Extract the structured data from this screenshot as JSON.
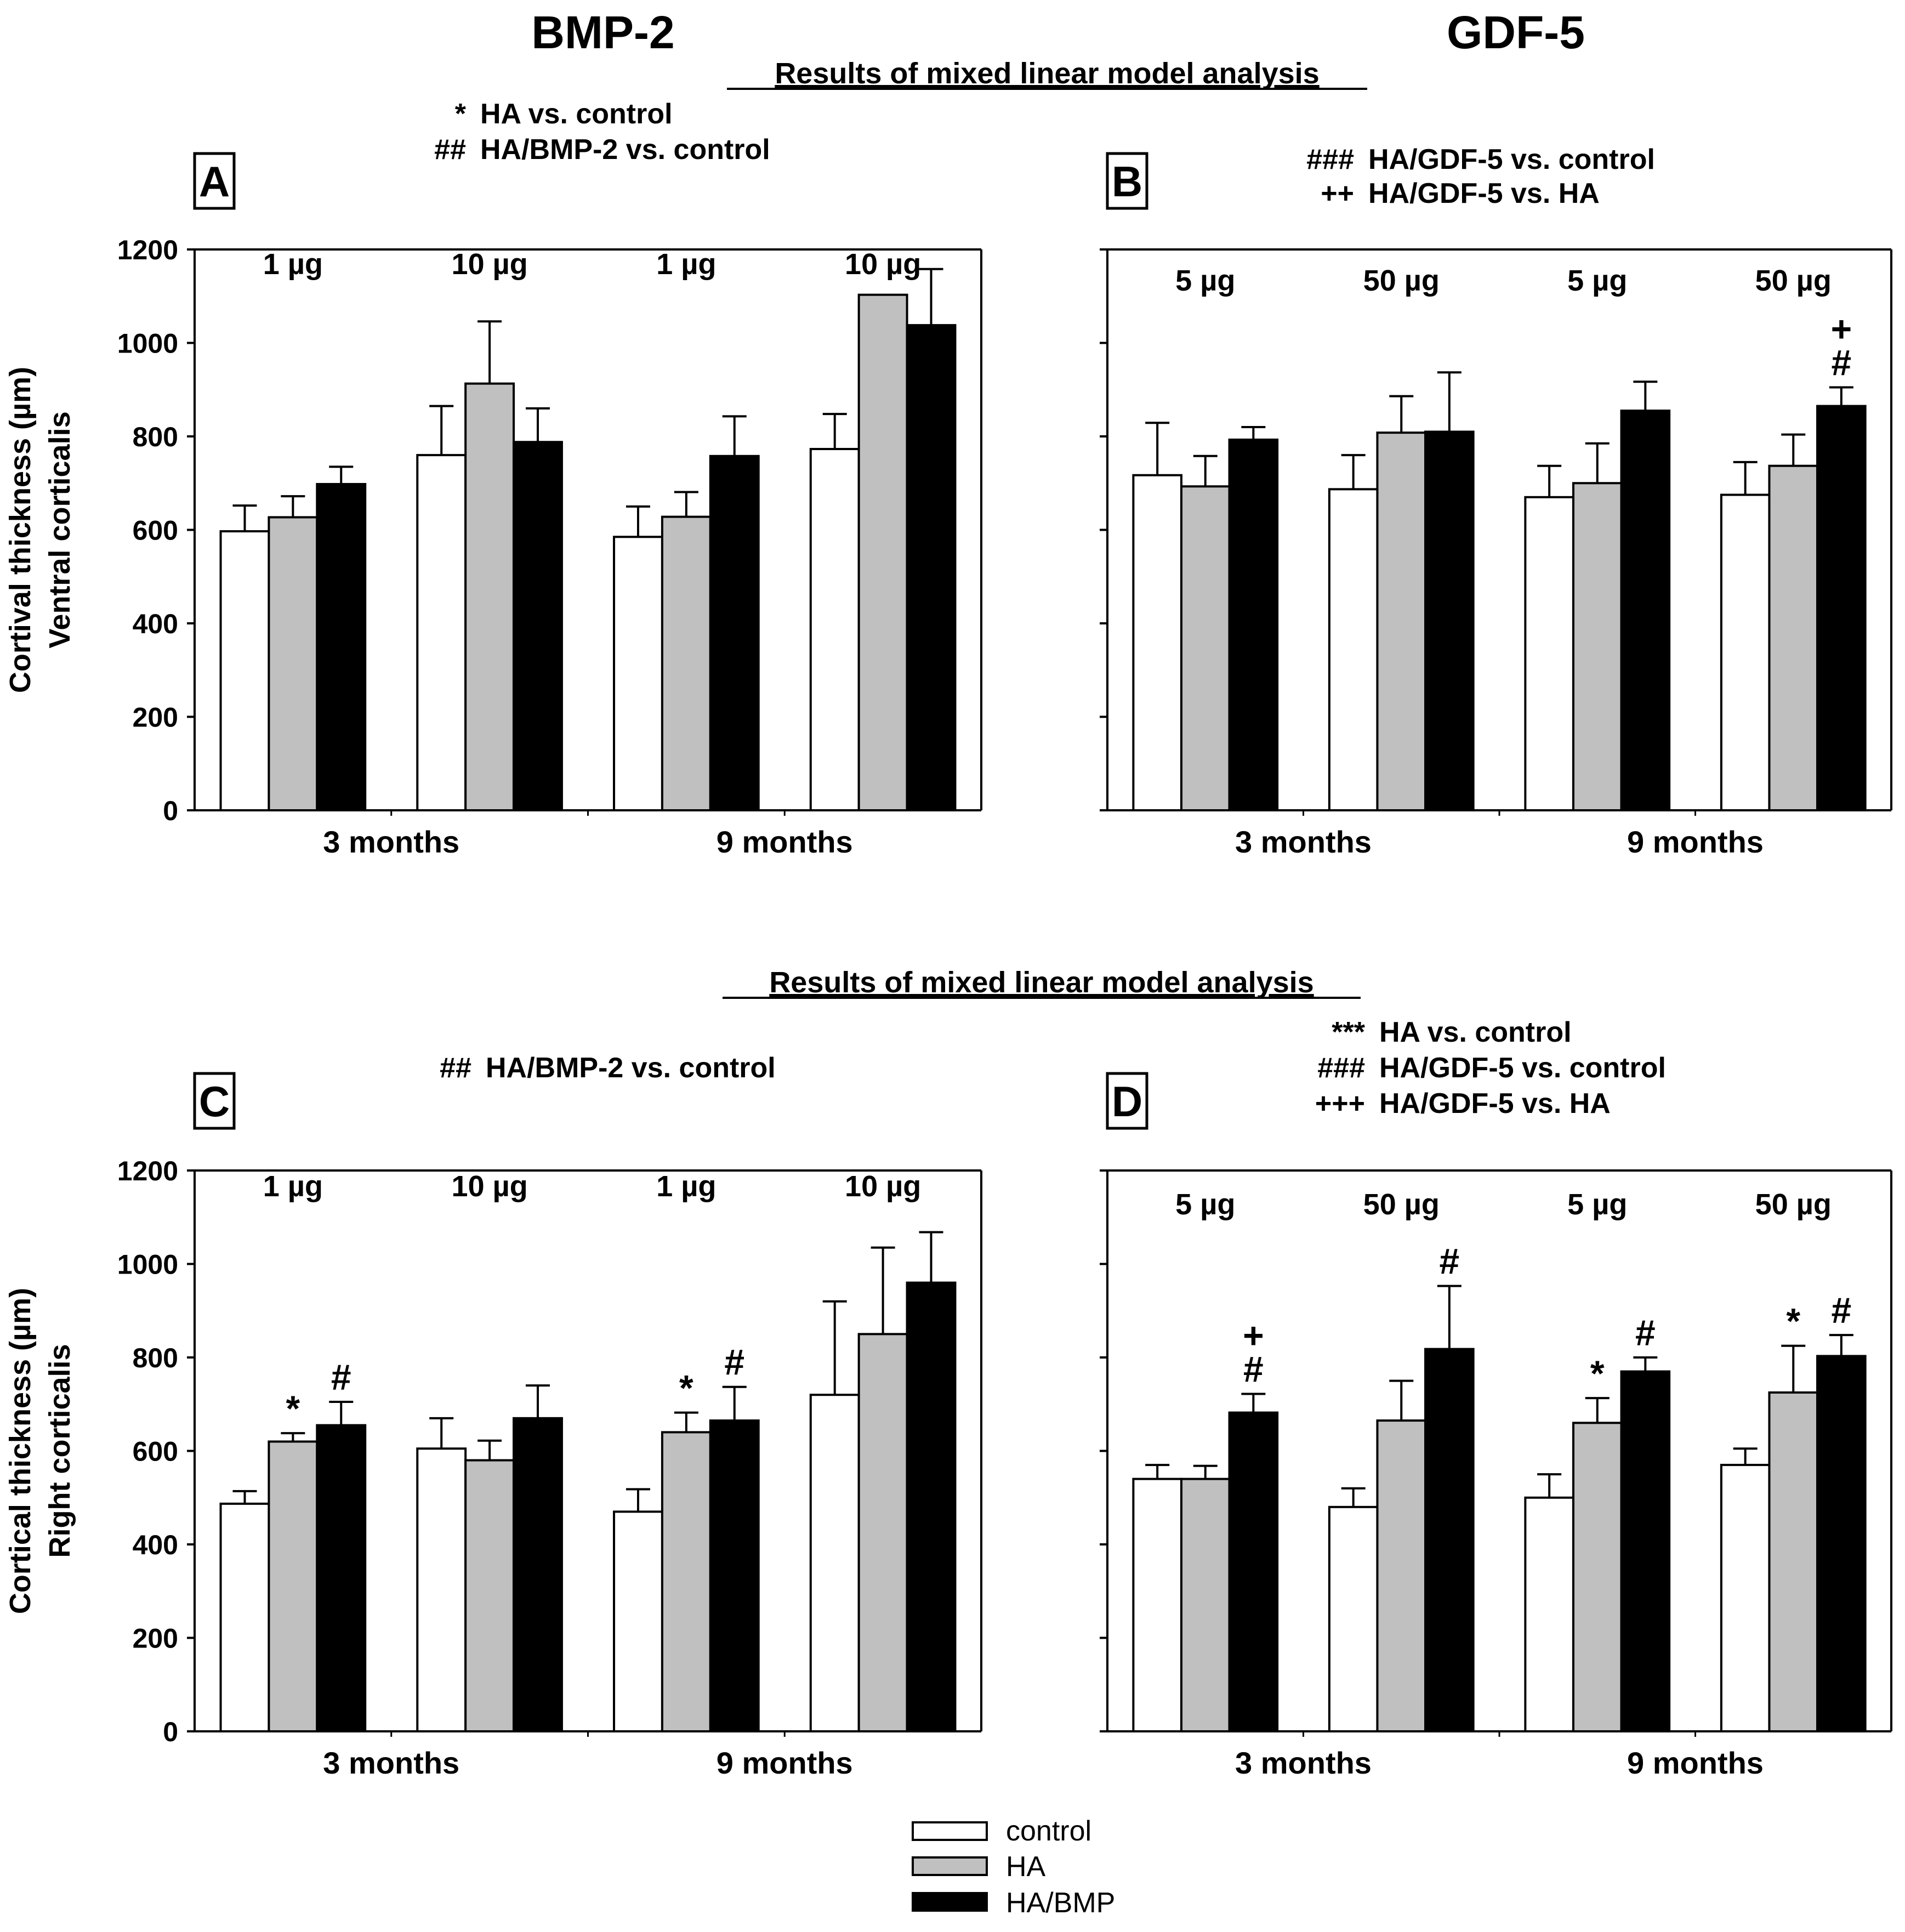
{
  "header": {
    "bmp_title": "BMP-2",
    "gdf_title": "GDF-5",
    "analysis_title_top": "Results of mixed linear model analysis",
    "analysis_title_bottom": "Results of mixed linear model analysis"
  },
  "legend": {
    "items": [
      {
        "label": "control",
        "color": "#ffffff"
      },
      {
        "label": "HA",
        "color": "#c0c0c0"
      },
      {
        "label": "HA/BMP",
        "color": "#000000"
      }
    ]
  },
  "chart_data": [
    {
      "panel": "A",
      "type": "bar",
      "ylabel_lines": [
        "Cortival thickness (µm)",
        "Ventral corticalis"
      ],
      "ylim": [
        0,
        1200
      ],
      "yticks": [
        0,
        200,
        400,
        600,
        800,
        1000,
        1200
      ],
      "show_tick_labels": true,
      "time_labels": [
        "3 months",
        "9 months"
      ],
      "dose_labels": [
        "1 µg",
        "10 µg",
        "1 µg",
        "10 µg"
      ],
      "stats": [
        {
          "symbol": "*",
          "text": "HA vs. control"
        },
        {
          "symbol": "##",
          "text": "HA/BMP-2 vs. control"
        }
      ],
      "series": [
        {
          "name": "control",
          "values": [
            597,
            760,
            585,
            773
          ],
          "errors": [
            55,
            105,
            65,
            75
          ]
        },
        {
          "name": "HA",
          "values": [
            627,
            913,
            628,
            1103
          ],
          "errors": [
            45,
            133,
            53,
            0
          ]
        },
        {
          "name": "HA/BMP",
          "values": [
            698,
            788,
            758,
            1038
          ],
          "errors": [
            37,
            72,
            85,
            120
          ]
        }
      ],
      "markers": []
    },
    {
      "panel": "B",
      "type": "bar",
      "ylabel_lines": [],
      "ylim": [
        0,
        1200
      ],
      "yticks": [
        0,
        200,
        400,
        600,
        800,
        1000,
        1200
      ],
      "show_tick_labels": false,
      "time_labels": [
        "3 months",
        "9 months"
      ],
      "dose_labels": [
        "5 µg",
        "50 µg",
        "5 µg",
        "50 µg"
      ],
      "stats": [
        {
          "symbol": "###",
          "text": "HA/GDF-5 vs. control"
        },
        {
          "symbol": "++",
          "text": "HA/GDF-5 vs. HA"
        }
      ],
      "series": [
        {
          "name": "control",
          "values": [
            717,
            687,
            670,
            675
          ],
          "errors": [
            112,
            73,
            67,
            70
          ]
        },
        {
          "name": "HA",
          "values": [
            693,
            808,
            700,
            737
          ],
          "errors": [
            65,
            78,
            85,
            67
          ]
        },
        {
          "name": "HA/BMP",
          "values": [
            793,
            810,
            855,
            865
          ],
          "errors": [
            27,
            127,
            62,
            40
          ]
        }
      ],
      "markers": [
        {
          "group": 3,
          "series": 2,
          "lines": [
            "+",
            "#"
          ]
        }
      ]
    },
    {
      "panel": "C",
      "type": "bar",
      "ylabel_lines": [
        "Cortical thickness (µm)",
        "Right corticalis"
      ],
      "ylim": [
        0,
        1200
      ],
      "yticks": [
        0,
        200,
        400,
        600,
        800,
        1000,
        1200
      ],
      "show_tick_labels": true,
      "time_labels": [
        "3 months",
        "9 months"
      ],
      "dose_labels": [
        "1 µg",
        "10 µg",
        "1 µg",
        "10 µg"
      ],
      "stats": [
        {
          "symbol": "##",
          "text": "HA/BMP-2 vs. control"
        }
      ],
      "series": [
        {
          "name": "control",
          "values": [
            487,
            605,
            470,
            720
          ],
          "errors": [
            27,
            65,
            48,
            200
          ]
        },
        {
          "name": "HA",
          "values": [
            620,
            580,
            640,
            850
          ],
          "errors": [
            18,
            42,
            42,
            185
          ]
        },
        {
          "name": "HA/BMP",
          "values": [
            655,
            670,
            665,
            960
          ],
          "errors": [
            50,
            70,
            72,
            108
          ]
        }
      ],
      "markers": [
        {
          "group": 0,
          "series": 1,
          "lines": [
            "*"
          ]
        },
        {
          "group": 0,
          "series": 2,
          "lines": [
            "#"
          ]
        },
        {
          "group": 2,
          "series": 1,
          "lines": [
            "*"
          ]
        },
        {
          "group": 2,
          "series": 2,
          "lines": [
            "#"
          ]
        }
      ]
    },
    {
      "panel": "D",
      "type": "bar",
      "ylabel_lines": [],
      "ylim": [
        0,
        1200
      ],
      "yticks": [
        0,
        200,
        400,
        600,
        800,
        1000,
        1200
      ],
      "show_tick_labels": false,
      "time_labels": [
        "3 months",
        "9 months"
      ],
      "dose_labels": [
        "5 µg",
        "50 µg",
        "5 µg",
        "50 µg"
      ],
      "stats": [
        {
          "symbol": "***",
          "text": "HA vs. control"
        },
        {
          "symbol": "###",
          "text": "HA/GDF-5 vs. control"
        },
        {
          "symbol": "+++",
          "text": "HA/GDF-5 vs. HA"
        }
      ],
      "series": [
        {
          "name": "control",
          "values": [
            540,
            480,
            500,
            570
          ],
          "errors": [
            30,
            40,
            50,
            35
          ]
        },
        {
          "name": "HA",
          "values": [
            540,
            665,
            660,
            725
          ],
          "errors": [
            28,
            85,
            53,
            100
          ]
        },
        {
          "name": "HA/BMP",
          "values": [
            682,
            818,
            770,
            803
          ],
          "errors": [
            40,
            135,
            30,
            45
          ]
        }
      ],
      "markers": [
        {
          "group": 0,
          "series": 2,
          "lines": [
            "+",
            "#"
          ]
        },
        {
          "group": 1,
          "series": 2,
          "lines": [
            "#"
          ]
        },
        {
          "group": 2,
          "series": 1,
          "lines": [
            "*"
          ]
        },
        {
          "group": 2,
          "series": 2,
          "lines": [
            "#"
          ]
        },
        {
          "group": 3,
          "series": 1,
          "lines": [
            "*"
          ]
        },
        {
          "group": 3,
          "series": 2,
          "lines": [
            "#"
          ]
        }
      ]
    }
  ]
}
